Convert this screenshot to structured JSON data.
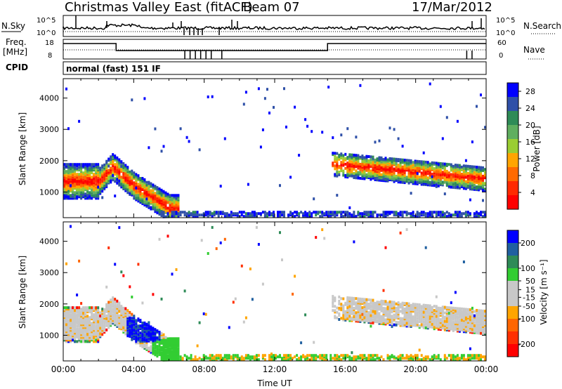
{
  "header": {
    "station": "Christmas Valley East (fitACF)",
    "beam": "Beam 07",
    "date": "17/Mar/2012"
  },
  "top_panels": {
    "nsky_label": "N.Sky",
    "nsky_ticks": [
      "10^5",
      "10^0"
    ],
    "nsearch_label": "N.Search",
    "nsearch_ticks": [
      "10^5",
      "10^0"
    ],
    "freq_label_1": "Freq.",
    "freq_label_2": "[MHz]",
    "freq_ticks": [
      "18",
      "8"
    ],
    "nave_label": "Nave",
    "nave_ticks": [
      "60",
      "0"
    ],
    "cpid_label": "CPID",
    "cpid_value": "normal (fast) 151 IF"
  },
  "colors": {
    "power": [
      "#0000ff",
      "#2f50a8",
      "#2e8b57",
      "#5fae5f",
      "#9acd32",
      "#ffa500",
      "#ff6a00",
      "#ff2a00",
      "#ff0000"
    ],
    "velocity": [
      "#0000ff",
      "#2060a0",
      "#2e8b57",
      "#32cd32",
      "#c8c8c8",
      "#c8c8c8",
      "#ffa500",
      "#ff6600",
      "#ff3000",
      "#ff0000"
    ]
  },
  "chart_data": [
    {
      "type": "heatmap",
      "name": "power",
      "xlabel": "Time UT",
      "ylabel": "Slant Range [km]",
      "x_ticks": [
        "00:00",
        "04:00",
        "08:00",
        "12:00",
        "16:00",
        "20:00",
        "00:00"
      ],
      "x_range_hours": [
        0,
        24
      ],
      "y_ticks": [
        4000,
        3000,
        2000,
        1000
      ],
      "y_range_km": [
        180,
        4620
      ],
      "colorbar_label": "Power [dB]",
      "colorbar_ticks": [
        28,
        24,
        20,
        16,
        12,
        8,
        4
      ],
      "colorbar_range": [
        0,
        30
      ]
    },
    {
      "type": "heatmap",
      "name": "velocity",
      "xlabel": "Time UT",
      "ylabel": "Slant Range [km]",
      "x_ticks": [
        "00:00",
        "04:00",
        "08:00",
        "12:00",
        "16:00",
        "20:00",
        "00:00"
      ],
      "x_range_hours": [
        0,
        24
      ],
      "y_ticks": [
        4000,
        3000,
        2000,
        1000
      ],
      "y_range_km": [
        180,
        4620
      ],
      "colorbar_label": "Velocity [m s⁻¹]",
      "colorbar_ticks": [
        200,
        100,
        50,
        15,
        -15,
        -50,
        -100,
        -200
      ],
      "colorbar_range": [
        -250,
        250
      ]
    }
  ]
}
